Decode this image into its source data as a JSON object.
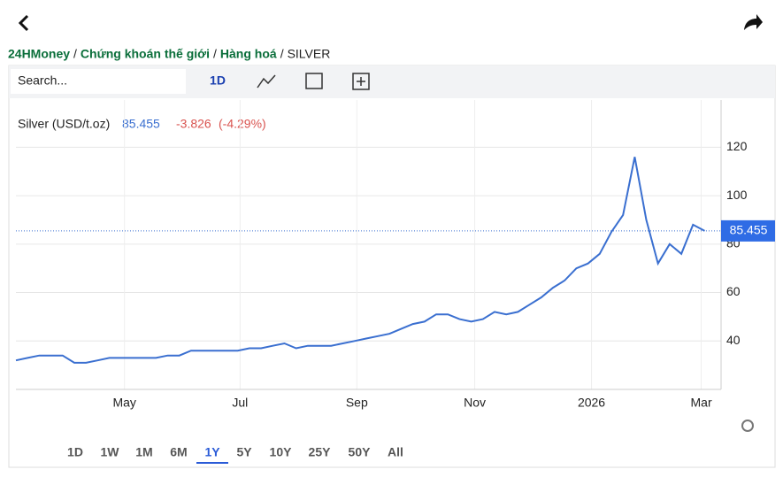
{
  "breadcrumb": {
    "items": [
      "24HMoney",
      "Chứng khoán thế giới",
      "Hàng hoá",
      "SILVER"
    ],
    "separator": "/"
  },
  "toolbar": {
    "search": "Search...",
    "interval": "1D"
  },
  "chart_data": {
    "type": "line",
    "title": "Silver (USD/t.oz)",
    "last": 85.455,
    "change": -3.826,
    "change_pct": "(-4.29%)",
    "series": [
      {
        "name": "Silver",
        "color": "#3a6fd0",
        "values": [
          32,
          33,
          34,
          34,
          34,
          31,
          31,
          32,
          33,
          33,
          33,
          33,
          33,
          34,
          34,
          36,
          36,
          36,
          36,
          36,
          37,
          37,
          38,
          39,
          37,
          38,
          38,
          38,
          39,
          40,
          41,
          42,
          43,
          45,
          47,
          48,
          51,
          51,
          49,
          48,
          49,
          52,
          51,
          52,
          55,
          58,
          62,
          65,
          70,
          72,
          76,
          85,
          92,
          116,
          90,
          72,
          80,
          76,
          88,
          85.455
        ]
      }
    ],
    "xlim": [
      0,
      60.4
    ],
    "xticks": [
      {
        "value": 9.3,
        "label": "May"
      },
      {
        "value": 19.2,
        "label": "Jul"
      },
      {
        "value": 29.2,
        "label": "Sep"
      },
      {
        "value": 39.3,
        "label": "Nov"
      },
      {
        "value": 49.3,
        "label": "2026"
      },
      {
        "value": 58.7,
        "label": "Mar"
      }
    ],
    "ylim": [
      20,
      139.5
    ],
    "yticks": [
      40,
      60,
      80,
      100,
      120
    ],
    "grid": true
  },
  "ranges": {
    "items": [
      "1D",
      "1W",
      "1M",
      "6M",
      "1Y",
      "5Y",
      "10Y",
      "25Y",
      "50Y",
      "All"
    ],
    "active": "1Y"
  }
}
